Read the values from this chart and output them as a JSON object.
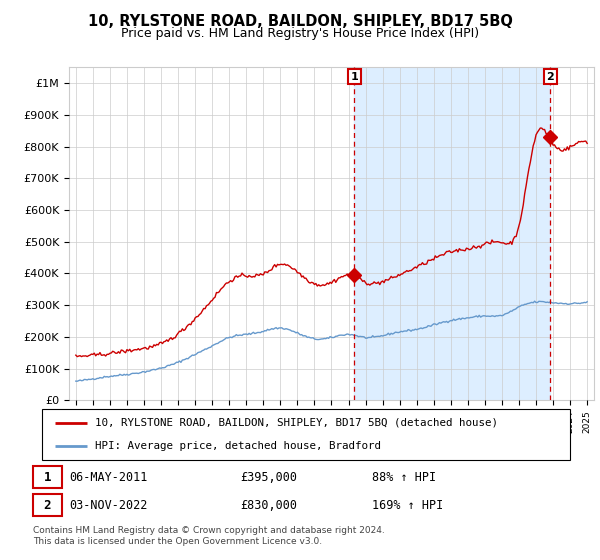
{
  "title": "10, RYLSTONE ROAD, BAILDON, SHIPLEY, BD17 5BQ",
  "subtitle": "Price paid vs. HM Land Registry's House Price Index (HPI)",
  "legend_line1": "10, RYLSTONE ROAD, BAILDON, SHIPLEY, BD17 5BQ (detached house)",
  "legend_line2": "HPI: Average price, detached house, Bradford",
  "annotation1_label": "1",
  "annotation1_date": "06-MAY-2011",
  "annotation1_price": "£395,000",
  "annotation1_hpi": "88% ↑ HPI",
  "annotation2_label": "2",
  "annotation2_date": "03-NOV-2022",
  "annotation2_price": "£830,000",
  "annotation2_hpi": "169% ↑ HPI",
  "footer": "Contains HM Land Registry data © Crown copyright and database right 2024.\nThis data is licensed under the Open Government Licence v3.0.",
  "red_color": "#cc0000",
  "blue_color": "#6699cc",
  "shade_color": "#ddeeff",
  "background_color": "#ffffff",
  "grid_color": "#cccccc",
  "ylim": [
    0,
    1050000
  ],
  "yticks": [
    0,
    100000,
    200000,
    300000,
    400000,
    500000,
    600000,
    700000,
    800000,
    900000,
    1000000
  ],
  "ytick_labels": [
    "£0",
    "£100K",
    "£200K",
    "£300K",
    "£400K",
    "£500K",
    "£600K",
    "£700K",
    "£800K",
    "£900K",
    "£1M"
  ],
  "sale1_x": 2011.34,
  "sale1_y": 395000,
  "sale2_x": 2022.84,
  "sale2_y": 830000,
  "xlim_left": 1994.6,
  "xlim_right": 2025.4
}
